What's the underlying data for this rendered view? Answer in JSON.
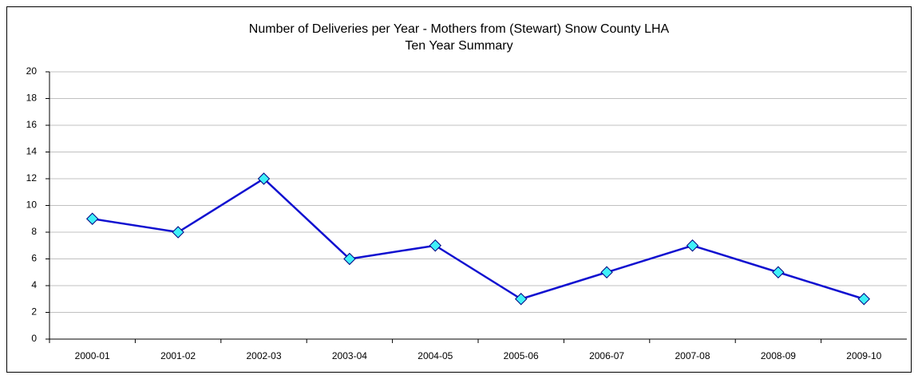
{
  "chart_data": {
    "type": "line",
    "title": "Number of Deliveries per Year - Mothers from (Stewart) Snow County LHA",
    "subtitle": "Ten Year Summary",
    "categories": [
      "2000-01",
      "2001-02",
      "2002-03",
      "2003-04",
      "2004-05",
      "2005-06",
      "2006-07",
      "2007-08",
      "2008-09",
      "2009-10"
    ],
    "values": [
      9,
      8,
      12,
      6,
      7,
      3,
      5,
      7,
      5,
      3
    ],
    "color": "#1010d0",
    "marker_color": "#40f0f8",
    "ylim": [
      0,
      20
    ],
    "yticks": [
      0,
      2,
      4,
      6,
      8,
      10,
      12,
      14,
      16,
      18,
      20
    ],
    "grid": true
  }
}
